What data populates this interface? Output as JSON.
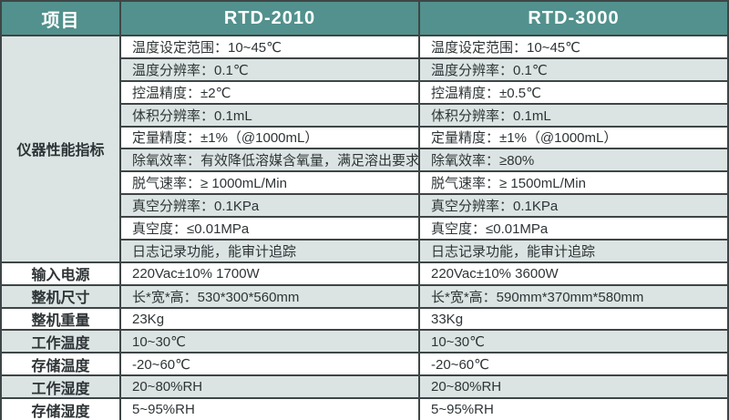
{
  "table": {
    "header": {
      "item": "项目",
      "rtd2010": "RTD-2010",
      "rtd3000": "RTD-3000"
    },
    "performance": {
      "label": "仪器性能指标",
      "rows": [
        {
          "rtd2010": "温度设定范围：10~45℃",
          "rtd3000": "温度设定范围：10~45℃"
        },
        {
          "rtd2010": "温度分辨率：0.1℃",
          "rtd3000": "温度分辨率：0.1℃"
        },
        {
          "rtd2010": "控温精度：±2℃",
          "rtd3000": "控温精度：±0.5℃"
        },
        {
          "rtd2010": "体积分辨率：0.1mL",
          "rtd3000": "体积分辨率：0.1mL"
        },
        {
          "rtd2010": "定量精度：±1%（@1000mL）",
          "rtd3000": "定量精度：±1%（@1000mL）"
        },
        {
          "rtd2010": "除氧效率：有效降低溶媒含氧量，满足溶出要求",
          "rtd3000": "除氧效率：≥80%"
        },
        {
          "rtd2010": "脱气速率：≥ 1000mL/Min",
          "rtd3000": "脱气速率：≥ 1500mL/Min"
        },
        {
          "rtd2010": "真空分辨率：0.1KPa",
          "rtd3000": "真空分辨率：0.1KPa"
        },
        {
          "rtd2010": "真空度：≤0.01MPa",
          "rtd3000": "真空度：≤0.01MPa"
        },
        {
          "rtd2010": "日志记录功能，能审计追踪",
          "rtd3000": "日志记录功能，能审计追踪"
        }
      ]
    },
    "general_rows": [
      {
        "label": "输入电源",
        "rtd2010": "220Vac±10% 1700W",
        "rtd3000": "220Vac±10% 3600W"
      },
      {
        "label": "整机尺寸",
        "rtd2010": "长*宽*高：530*300*560mm",
        "rtd3000": "长*宽*高：590mm*370mm*580mm"
      },
      {
        "label": "整机重量",
        "rtd2010": "23Kg",
        "rtd3000": "33Kg"
      },
      {
        "label": "工作温度",
        "rtd2010": "10~30℃",
        "rtd3000": "10~30℃"
      },
      {
        "label": "存储温度",
        "rtd2010": "-20~60℃",
        "rtd3000": "-20~60℃"
      },
      {
        "label": "工作湿度",
        "rtd2010": "20~80%RH",
        "rtd3000": "20~80%RH"
      },
      {
        "label": "存储湿度",
        "rtd2010": "5~95%RH",
        "rtd3000": "5~95%RH"
      }
    ]
  },
  "colors": {
    "header_bg": "#52918d",
    "stripe_bg": "#dce4e3",
    "row_bg": "#ffffff",
    "border": "#3e4546",
    "header_text": "#ffffff",
    "body_text": "#2e3436"
  }
}
